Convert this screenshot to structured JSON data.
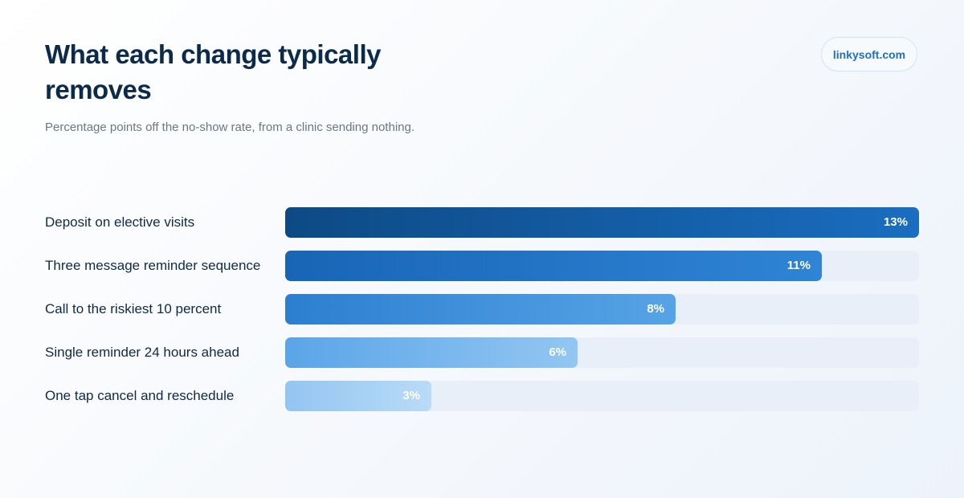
{
  "brand": "linkysoft.com",
  "chart_data": {
    "type": "bar",
    "orientation": "horizontal",
    "title": "What each change typically removes",
    "subtitle": "Percentage points off the no-show rate, from a clinic sending nothing.",
    "categories": [
      "Deposit on elective visits",
      "Three message reminder sequence",
      "Call to the riskiest 10 percent",
      "Single reminder 24 hours ahead",
      "One tap cancel and reschedule"
    ],
    "values": [
      13,
      11,
      8,
      6,
      3
    ],
    "value_labels": [
      "13%",
      "11%",
      "8%",
      "6%",
      "3%"
    ],
    "xlim": [
      0,
      13
    ],
    "grid": false,
    "legend": "none",
    "colors": [
      [
        "#0d4a85",
        "#1a6dc0"
      ],
      [
        "#1865b6",
        "#2f84d6"
      ],
      [
        "#2c7fd0",
        "#57a3e6"
      ],
      [
        "#5aa5e8",
        "#93c6f2"
      ],
      [
        "#93c5f2",
        "#b9dbf7"
      ]
    ],
    "track_color": "#e9eff8"
  }
}
